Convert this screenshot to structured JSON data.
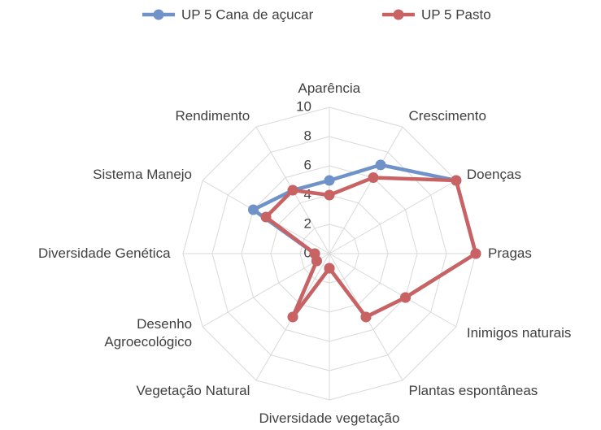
{
  "chart_data": {
    "type": "radar",
    "categories": [
      "Aparência",
      "Crescimento",
      "Doenças",
      "Pragas",
      "Inimigos naturais",
      "Plantas espontâneas",
      "Diversidade vegetação",
      "Vegetação Natural",
      "Desenho Agroecológico",
      "Diversidade Genética",
      "Sistema Manejo",
      "Rendimento"
    ],
    "series": [
      {
        "name": "UP 5 Cana de açucar",
        "color": "#6f93c8",
        "values": [
          5,
          7,
          10,
          10,
          6,
          5,
          1,
          5,
          1,
          1,
          6,
          5
        ]
      },
      {
        "name": "UP 5 Pasto",
        "color": "#c96263",
        "values": [
          4,
          6,
          10,
          10,
          6,
          5,
          1,
          5,
          1,
          1,
          5,
          5
        ]
      }
    ],
    "ylim": [
      0,
      10
    ],
    "yticks": [
      0,
      2,
      4,
      6,
      8,
      10
    ],
    "grid": true,
    "legend": "top"
  }
}
